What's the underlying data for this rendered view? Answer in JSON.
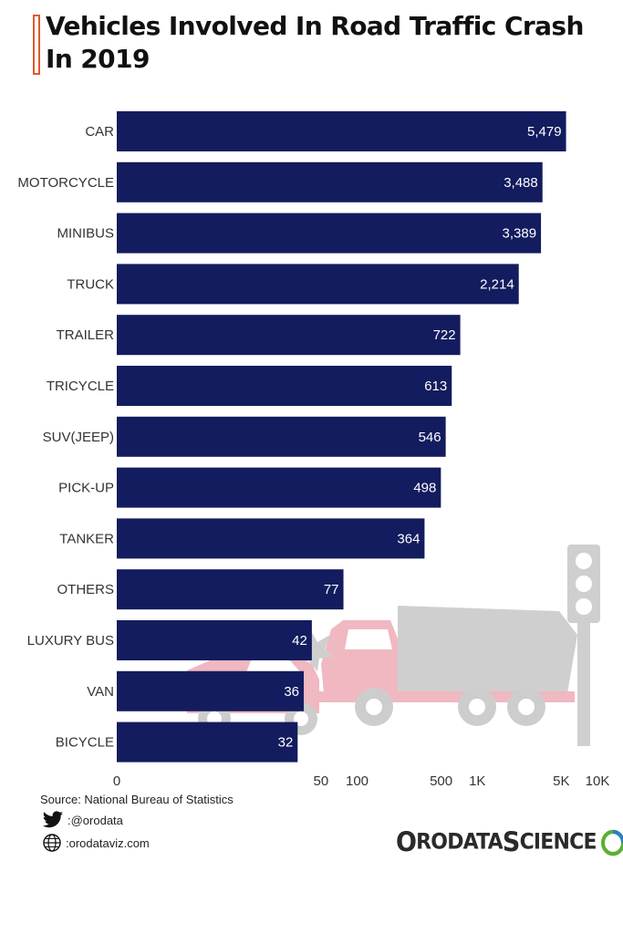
{
  "header": {
    "title": "Vehicles Involved In Road Traffic Crash In 2019"
  },
  "chart_data": {
    "type": "bar",
    "orientation": "horizontal",
    "scale": "log",
    "categories": [
      "CAR",
      "MOTORCYCLE",
      "MINIBUS",
      "TRUCK",
      "TRAILER",
      "TRICYCLE",
      "SUV(JEEP)",
      "PICK-UP",
      "TANKER",
      "OTHERS",
      "LUXURY BUS",
      "VAN",
      "BICYCLE"
    ],
    "values": [
      5479,
      3488,
      3389,
      2214,
      722,
      613,
      546,
      498,
      364,
      77,
      42,
      36,
      32
    ],
    "value_labels": [
      "5,479",
      "3,488",
      "3,389",
      "2,214",
      "722",
      "613",
      "546",
      "498",
      "364",
      "77",
      "42",
      "36",
      "32"
    ],
    "x_ticks": [
      {
        "value": 1,
        "label": "0"
      },
      {
        "value": 50,
        "label": "50"
      },
      {
        "value": 100,
        "label": "100"
      },
      {
        "value": 500,
        "label": "500"
      },
      {
        "value": 1000,
        "label": "1K"
      },
      {
        "value": 5000,
        "label": "5K"
      },
      {
        "value": 10000,
        "label": "10K"
      }
    ],
    "xlim": [
      1,
      10000
    ],
    "bar_color": "#131c5e",
    "grid": false
  },
  "footer": {
    "source": "Source: National Bureau of Statistics",
    "twitter": ":@orodata",
    "website": ":orodataviz.com",
    "brand": {
      "o1": "O",
      "part1": "RODATA ",
      "s": "S",
      "part2": "CIENCE"
    },
    "brand_colors": {
      "ring_green": "#5ab031",
      "ring_blue": "#2d7fc1"
    }
  },
  "colors": {
    "title_accent": "#e2582c",
    "illustration_pink": "#f0b8c0",
    "illustration_gray": "#cdcdcd"
  }
}
